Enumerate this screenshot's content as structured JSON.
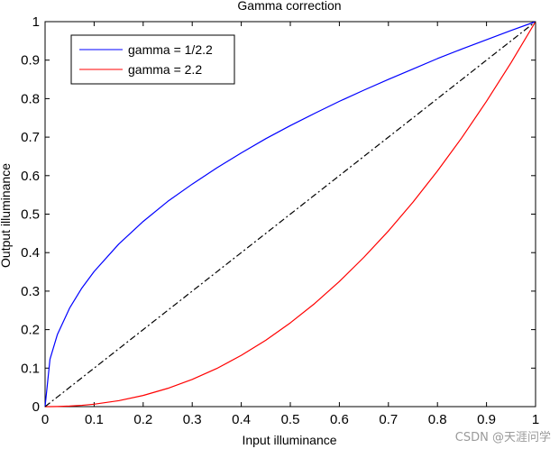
{
  "chart_data": {
    "type": "line",
    "title": "Gamma correction",
    "xlabel": "Input illuminance",
    "ylabel": "Output illuminance",
    "xlim": [
      0,
      1
    ],
    "ylim": [
      0,
      1
    ],
    "grid": false,
    "legend_position": "top-left",
    "xticks": [
      "0",
      "0.1",
      "0.2",
      "0.3",
      "0.4",
      "0.5",
      "0.6",
      "0.7",
      "0.8",
      "0.9",
      "1"
    ],
    "yticks": [
      "0",
      "0.1",
      "0.2",
      "0.3",
      "0.4",
      "0.5",
      "0.6",
      "0.7",
      "0.8",
      "0.9",
      "1"
    ],
    "x": [
      0,
      0.01,
      0.025,
      0.05,
      0.075,
      0.1,
      0.15,
      0.2,
      0.25,
      0.3,
      0.35,
      0.4,
      0.45,
      0.5,
      0.55,
      0.6,
      0.65,
      0.7,
      0.75,
      0.8,
      0.85,
      0.9,
      0.95,
      1
    ],
    "series": [
      {
        "name": "gamma = 1/2.2",
        "color": "#0000ff",
        "style": "solid",
        "values": [
          0,
          0.123,
          0.187,
          0.256,
          0.308,
          0.351,
          0.422,
          0.481,
          0.533,
          0.578,
          0.62,
          0.659,
          0.696,
          0.73,
          0.762,
          0.793,
          0.822,
          0.85,
          0.877,
          0.904,
          0.929,
          0.953,
          0.977,
          1
        ]
      },
      {
        "name": "gamma = 2.2",
        "color": "#ff0000",
        "style": "solid",
        "values": [
          0,
          4e-05,
          0.0003,
          0.0014,
          0.0034,
          0.0063,
          0.0154,
          0.029,
          0.0474,
          0.0707,
          0.099,
          0.1332,
          0.1724,
          0.2176,
          0.2682,
          0.325,
          0.3879,
          0.4562,
          0.531,
          0.6121,
          0.6992,
          0.7931,
          0.8934,
          1
        ]
      },
      {
        "color": "#000000",
        "style": "dash-dot",
        "values": [
          0,
          0.01,
          0.025,
          0.05,
          0.075,
          0.1,
          0.15,
          0.2,
          0.25,
          0.3,
          0.35,
          0.4,
          0.45,
          0.5,
          0.55,
          0.6,
          0.65,
          0.7,
          0.75,
          0.8,
          0.85,
          0.9,
          0.95,
          1
        ]
      }
    ]
  },
  "watermark": "CSDN @天涯问学"
}
